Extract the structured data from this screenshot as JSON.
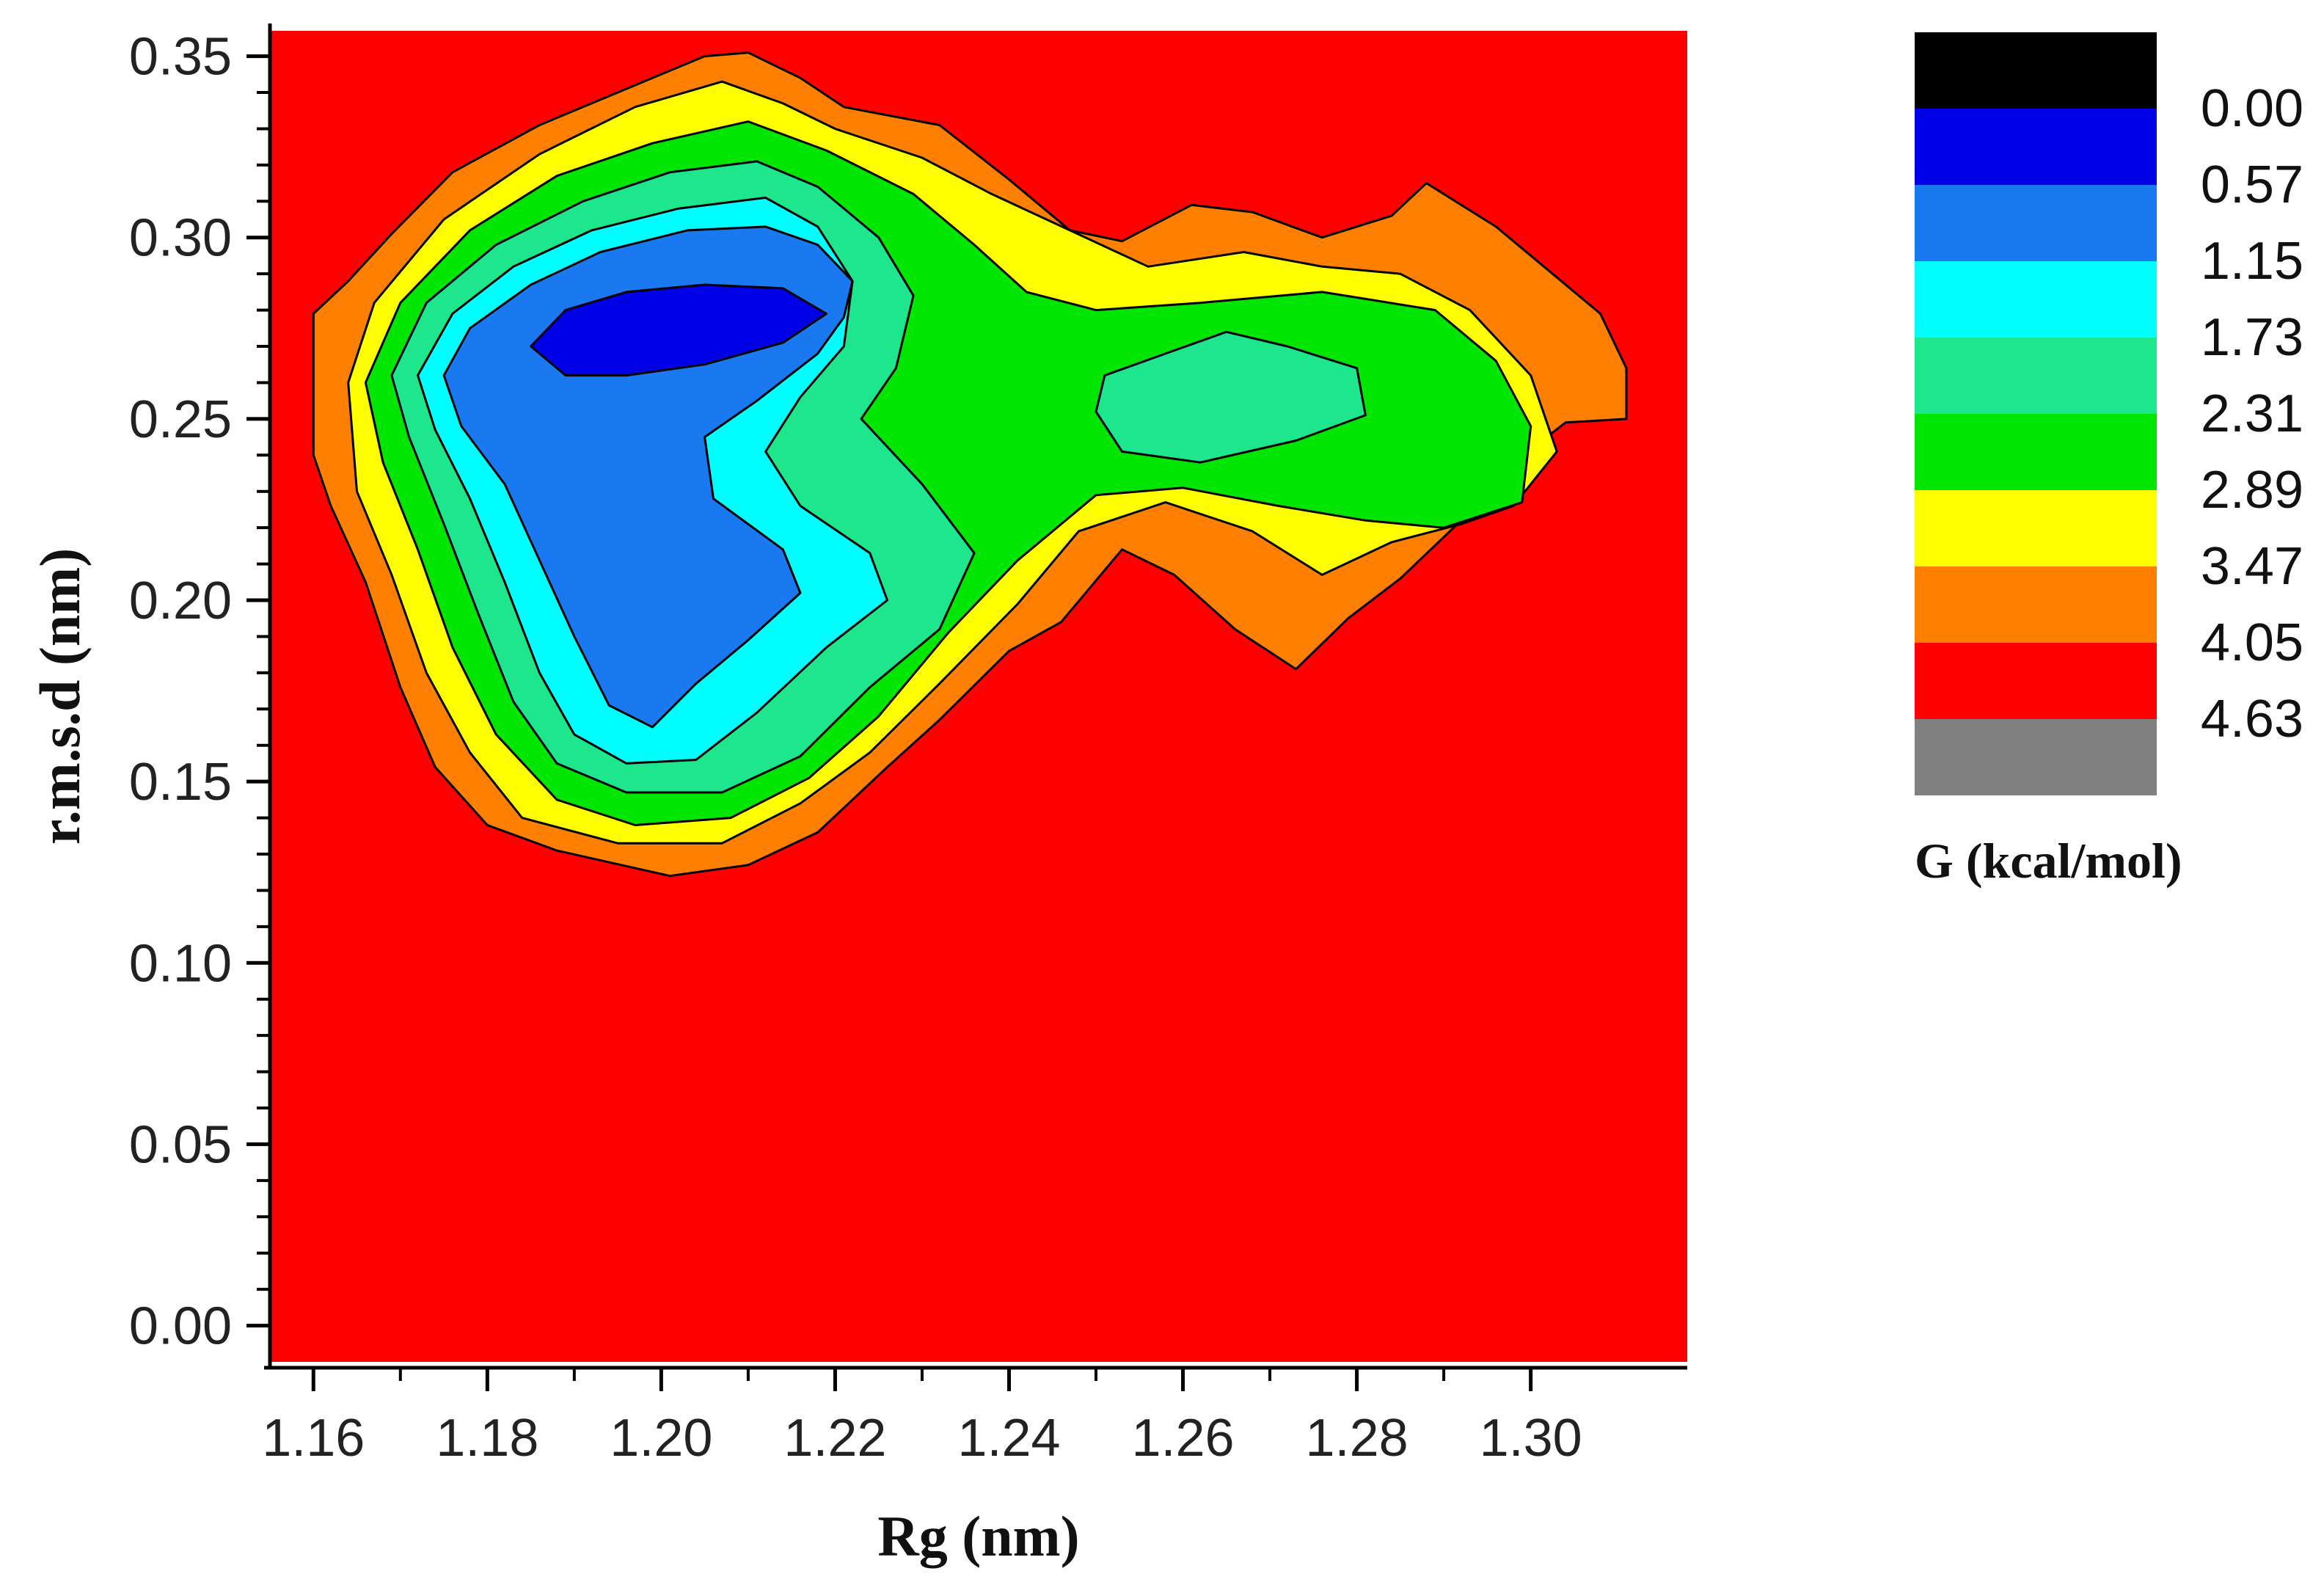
{
  "chart_data": {
    "type": "heatmap",
    "subtype": "filled-contour",
    "title": "",
    "xlabel": "Rg (nm)",
    "ylabel": "r.m.s.d (nm)",
    "xlim": [
      1.155,
      1.318
    ],
    "ylim": [
      -0.01,
      0.357
    ],
    "x_ticks": [
      1.16,
      1.18,
      1.2,
      1.22,
      1.24,
      1.26,
      1.28,
      1.3
    ],
    "x_tick_labels": [
      "1.16",
      "1.18",
      "1.20",
      "1.22",
      "1.24",
      "1.26",
      "1.28",
      "1.30"
    ],
    "y_ticks": [
      0.0,
      0.05,
      0.1,
      0.15,
      0.2,
      0.25,
      0.3,
      0.35
    ],
    "y_tick_labels": [
      "0.00",
      "0.05",
      "0.10",
      "0.15",
      "0.20",
      "0.25",
      "0.30",
      "0.35"
    ],
    "grid": false,
    "colorbar": {
      "title": "G (kcal/mol)",
      "position": "right",
      "levels": [
        "0.00",
        "0.57",
        "1.15",
        "1.73",
        "2.31",
        "2.89",
        "3.47",
        "4.05",
        "4.63"
      ],
      "colors": [
        "#000000",
        "#0000e6",
        "#1a78f0",
        "#00ffff",
        "#1ee68c",
        "#00e600",
        "#ffff00",
        "#ff8000",
        "#ff0000",
        "#808080"
      ]
    },
    "background_color": "#ff0000",
    "contours": [
      {
        "level": "4.05",
        "color": "#ff8000",
        "points": [
          [
            1.16,
            0.279
          ],
          [
            1.164,
            0.288
          ],
          [
            1.169,
            0.301
          ],
          [
            1.176,
            0.318
          ],
          [
            1.186,
            0.331
          ],
          [
            1.197,
            0.342
          ],
          [
            1.205,
            0.35
          ],
          [
            1.21,
            0.351
          ],
          [
            1.216,
            0.344
          ],
          [
            1.221,
            0.336
          ],
          [
            1.232,
            0.331
          ],
          [
            1.24,
            0.316
          ],
          [
            1.247,
            0.302
          ],
          [
            1.253,
            0.299
          ],
          [
            1.261,
            0.309
          ],
          [
            1.268,
            0.307
          ],
          [
            1.276,
            0.3
          ],
          [
            1.284,
            0.306
          ],
          [
            1.288,
            0.315
          ],
          [
            1.296,
            0.303
          ],
          [
            1.302,
            0.291
          ],
          [
            1.308,
            0.279
          ],
          [
            1.311,
            0.264
          ],
          [
            1.311,
            0.25
          ],
          [
            1.304,
            0.249
          ],
          [
            1.297,
            0.236
          ],
          [
            1.292,
            0.222
          ],
          [
            1.285,
            0.206
          ],
          [
            1.279,
            0.195
          ],
          [
            1.273,
            0.181
          ],
          [
            1.266,
            0.192
          ],
          [
            1.259,
            0.207
          ],
          [
            1.253,
            0.214
          ],
          [
            1.246,
            0.194
          ],
          [
            1.24,
            0.186
          ],
          [
            1.232,
            0.167
          ],
          [
            1.226,
            0.154
          ],
          [
            1.218,
            0.136
          ],
          [
            1.21,
            0.127
          ],
          [
            1.201,
            0.124
          ],
          [
            1.188,
            0.131
          ],
          [
            1.18,
            0.138
          ],
          [
            1.174,
            0.154
          ],
          [
            1.17,
            0.176
          ],
          [
            1.166,
            0.205
          ],
          [
            1.162,
            0.226
          ],
          [
            1.16,
            0.24
          ]
        ]
      },
      {
        "level": "3.47",
        "color": "#ffff00",
        "points": [
          [
            1.164,
            0.26
          ],
          [
            1.167,
            0.282
          ],
          [
            1.175,
            0.305
          ],
          [
            1.186,
            0.323
          ],
          [
            1.197,
            0.336
          ],
          [
            1.207,
            0.343
          ],
          [
            1.214,
            0.337
          ],
          [
            1.22,
            0.33
          ],
          [
            1.23,
            0.322
          ],
          [
            1.238,
            0.312
          ],
          [
            1.247,
            0.302
          ],
          [
            1.256,
            0.292
          ],
          [
            1.267,
            0.296
          ],
          [
            1.276,
            0.292
          ],
          [
            1.285,
            0.29
          ],
          [
            1.293,
            0.28
          ],
          [
            1.3,
            0.262
          ],
          [
            1.303,
            0.241
          ],
          [
            1.298,
            0.226
          ],
          [
            1.292,
            0.221
          ],
          [
            1.284,
            0.216
          ],
          [
            1.276,
            0.207
          ],
          [
            1.268,
            0.219
          ],
          [
            1.258,
            0.227
          ],
          [
            1.248,
            0.219
          ],
          [
            1.241,
            0.199
          ],
          [
            1.232,
            0.177
          ],
          [
            1.224,
            0.158
          ],
          [
            1.216,
            0.144
          ],
          [
            1.207,
            0.133
          ],
          [
            1.195,
            0.133
          ],
          [
            1.184,
            0.14
          ],
          [
            1.178,
            0.158
          ],
          [
            1.173,
            0.18
          ],
          [
            1.169,
            0.207
          ],
          [
            1.165,
            0.23
          ]
        ]
      },
      {
        "level": "2.89",
        "color": "#00e600",
        "points": [
          [
            1.166,
            0.26
          ],
          [
            1.17,
            0.282
          ],
          [
            1.178,
            0.302
          ],
          [
            1.188,
            0.317
          ],
          [
            1.199,
            0.326
          ],
          [
            1.21,
            0.332
          ],
          [
            1.219,
            0.324
          ],
          [
            1.229,
            0.312
          ],
          [
            1.236,
            0.298
          ],
          [
            1.242,
            0.285
          ],
          [
            1.25,
            0.28
          ],
          [
            1.262,
            0.282
          ],
          [
            1.276,
            0.285
          ],
          [
            1.289,
            0.28
          ],
          [
            1.296,
            0.266
          ],
          [
            1.3,
            0.248
          ],
          [
            1.299,
            0.227
          ],
          [
            1.29,
            0.22
          ],
          [
            1.281,
            0.222
          ],
          [
            1.271,
            0.226
          ],
          [
            1.26,
            0.231
          ],
          [
            1.25,
            0.229
          ],
          [
            1.241,
            0.211
          ],
          [
            1.233,
            0.191
          ],
          [
            1.225,
            0.168
          ],
          [
            1.217,
            0.151
          ],
          [
            1.208,
            0.14
          ],
          [
            1.197,
            0.138
          ],
          [
            1.188,
            0.145
          ],
          [
            1.181,
            0.163
          ],
          [
            1.176,
            0.187
          ],
          [
            1.172,
            0.214
          ],
          [
            1.168,
            0.238
          ]
        ]
      },
      {
        "level": "2.31",
        "color": "#1ee68c",
        "points": [
          [
            1.169,
            0.262
          ],
          [
            1.173,
            0.282
          ],
          [
            1.181,
            0.298
          ],
          [
            1.191,
            0.31
          ],
          [
            1.201,
            0.318
          ],
          [
            1.211,
            0.321
          ],
          [
            1.218,
            0.314
          ],
          [
            1.225,
            0.3
          ],
          [
            1.229,
            0.284
          ],
          [
            1.227,
            0.264
          ],
          [
            1.223,
            0.25
          ],
          [
            1.23,
            0.232
          ],
          [
            1.236,
            0.213
          ],
          [
            1.232,
            0.192
          ],
          [
            1.224,
            0.176
          ],
          [
            1.216,
            0.157
          ],
          [
            1.207,
            0.147
          ],
          [
            1.196,
            0.147
          ],
          [
            1.188,
            0.155
          ],
          [
            1.183,
            0.172
          ],
          [
            1.179,
            0.196
          ],
          [
            1.175,
            0.221
          ],
          [
            1.171,
            0.245
          ]
        ]
      },
      {
        "level": "2.31",
        "color": "#1ee68c",
        "points": [
          [
            1.251,
            0.262
          ],
          [
            1.258,
            0.268
          ],
          [
            1.265,
            0.274
          ],
          [
            1.272,
            0.27
          ],
          [
            1.28,
            0.264
          ],
          [
            1.281,
            0.251
          ],
          [
            1.273,
            0.244
          ],
          [
            1.262,
            0.238
          ],
          [
            1.253,
            0.241
          ],
          [
            1.25,
            0.252
          ]
        ]
      },
      {
        "level": "1.73",
        "color": "#00ffff",
        "points": [
          [
            1.172,
            0.262
          ],
          [
            1.176,
            0.279
          ],
          [
            1.183,
            0.292
          ],
          [
            1.192,
            0.302
          ],
          [
            1.202,
            0.308
          ],
          [
            1.212,
            0.311
          ],
          [
            1.218,
            0.303
          ],
          [
            1.222,
            0.288
          ],
          [
            1.221,
            0.27
          ],
          [
            1.216,
            0.256
          ],
          [
            1.212,
            0.241
          ],
          [
            1.216,
            0.226
          ],
          [
            1.224,
            0.213
          ],
          [
            1.226,
            0.2
          ],
          [
            1.219,
            0.187
          ],
          [
            1.211,
            0.169
          ],
          [
            1.204,
            0.156
          ],
          [
            1.196,
            0.155
          ],
          [
            1.19,
            0.163
          ],
          [
            1.186,
            0.18
          ],
          [
            1.182,
            0.205
          ],
          [
            1.178,
            0.228
          ],
          [
            1.174,
            0.247
          ]
        ]
      },
      {
        "level": "1.15",
        "color": "#1a78f0",
        "points": [
          [
            1.175,
            0.262
          ],
          [
            1.178,
            0.275
          ],
          [
            1.185,
            0.287
          ],
          [
            1.193,
            0.296
          ],
          [
            1.203,
            0.302
          ],
          [
            1.212,
            0.303
          ],
          [
            1.218,
            0.298
          ],
          [
            1.222,
            0.288
          ],
          [
            1.221,
            0.278
          ],
          [
            1.218,
            0.268
          ],
          [
            1.211,
            0.255
          ],
          [
            1.205,
            0.245
          ],
          [
            1.206,
            0.228
          ],
          [
            1.214,
            0.214
          ],
          [
            1.216,
            0.202
          ],
          [
            1.21,
            0.189
          ],
          [
            1.204,
            0.177
          ],
          [
            1.199,
            0.165
          ],
          [
            1.194,
            0.171
          ],
          [
            1.19,
            0.19
          ],
          [
            1.186,
            0.211
          ],
          [
            1.182,
            0.232
          ],
          [
            1.177,
            0.248
          ]
        ]
      },
      {
        "level": "0.57",
        "color": "#0000e6",
        "points": [
          [
            1.185,
            0.27
          ],
          [
            1.189,
            0.28
          ],
          [
            1.196,
            0.285
          ],
          [
            1.205,
            0.287
          ],
          [
            1.214,
            0.286
          ],
          [
            1.219,
            0.279
          ],
          [
            1.214,
            0.271
          ],
          [
            1.205,
            0.265
          ],
          [
            1.196,
            0.262
          ],
          [
            1.189,
            0.262
          ]
        ]
      }
    ]
  }
}
